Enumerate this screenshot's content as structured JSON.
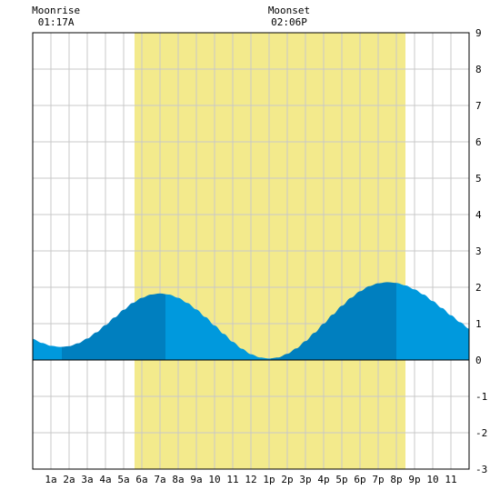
{
  "chart_data": {
    "type": "area",
    "title": "",
    "xlabel": "",
    "ylabel": "",
    "xlim": [
      0,
      24
    ],
    "ylim": [
      -3,
      9
    ],
    "grid": true,
    "x_ticks": [
      1,
      2,
      3,
      4,
      5,
      6,
      7,
      8,
      9,
      10,
      11,
      12,
      13,
      14,
      15,
      16,
      17,
      18,
      19,
      20,
      21,
      22,
      23
    ],
    "x_tick_labels": [
      "1a",
      "2a",
      "3a",
      "4a",
      "5a",
      "6a",
      "7a",
      "8a",
      "9a",
      "10",
      "11",
      "12",
      "1p",
      "2p",
      "3p",
      "4p",
      "5p",
      "6p",
      "7p",
      "8p",
      "9p",
      "10",
      "11"
    ],
    "y_ticks": [
      -3,
      -2,
      -1,
      0,
      1,
      2,
      3,
      4,
      5,
      6,
      7,
      8,
      9
    ],
    "y_tick_labels": [
      "-3",
      "-2",
      "-1",
      "0",
      "1",
      "2",
      "3",
      "4",
      "5",
      "6",
      "7",
      "8",
      "9"
    ],
    "daylight": {
      "start": 5.6,
      "end": 20.5
    },
    "series": [
      {
        "x": [
          0,
          0.5,
          1,
          1.5,
          2,
          2.5,
          3,
          3.5,
          4,
          4.5,
          5,
          5.5,
          6,
          6.5,
          7,
          7.5,
          8,
          8.5,
          9,
          9.5,
          10,
          10.5,
          11,
          11.5,
          12,
          12.5,
          13,
          13.5,
          14,
          14.5,
          15,
          15.5,
          16,
          16.5,
          17,
          17.5,
          18,
          18.5,
          19,
          19.5,
          20,
          20.5,
          21,
          21.5,
          22,
          22.5,
          23,
          23.5,
          24
        ],
        "values": [
          0.58,
          0.47,
          0.39,
          0.36,
          0.38,
          0.46,
          0.59,
          0.76,
          0.96,
          1.17,
          1.38,
          1.57,
          1.71,
          1.8,
          1.83,
          1.8,
          1.71,
          1.57,
          1.39,
          1.18,
          0.95,
          0.72,
          0.5,
          0.31,
          0.16,
          0.07,
          0.04,
          0.07,
          0.17,
          0.32,
          0.52,
          0.75,
          1.0,
          1.25,
          1.49,
          1.71,
          1.89,
          2.03,
          2.11,
          2.14,
          2.12,
          2.05,
          1.94,
          1.8,
          1.62,
          1.43,
          1.23,
          1.04,
          0.86
        ]
      }
    ],
    "bands": [
      {
        "from": 0,
        "to": 1.6,
        "shade": "light"
      },
      {
        "from": 1.6,
        "to": 7.3,
        "shade": "dark"
      },
      {
        "from": 7.3,
        "to": 13.1,
        "shade": "light"
      },
      {
        "from": 13.1,
        "to": 20,
        "shade": "dark"
      },
      {
        "from": 20,
        "to": 24,
        "shade": "light"
      }
    ],
    "annotations": [
      {
        "label": "Moonrise",
        "time": "01:17A",
        "x": 1.28
      },
      {
        "label": "Moonset",
        "time": "02:06P",
        "x": 14.1
      }
    ],
    "colors": {
      "daylight": "#f3ea8c",
      "water_light": "#0099dd",
      "water_dark": "#007fbf",
      "grid": "#c8c8c8",
      "frame": "#000000",
      "background": "#ffffff"
    }
  }
}
